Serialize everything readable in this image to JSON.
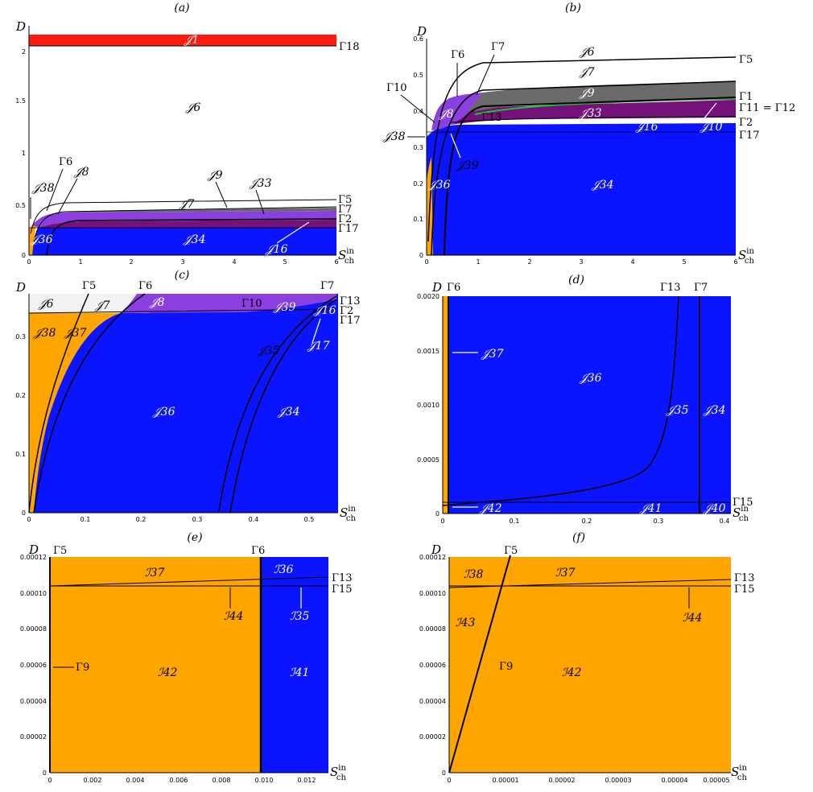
{
  "colors": {
    "blue": "#0a14ff",
    "orange": "#ffa500",
    "purple": "#8b3fe0",
    "darkpurple": "#74117a",
    "gray": "#6a6a6a",
    "lightgray": "#f2f2f2",
    "red": "#ff1a0f",
    "green": "#18c72b",
    "white": "#ffffff"
  },
  "chart_data": [
    {
      "panel": "(a)",
      "type": "area",
      "ylabel": "D",
      "xlabel": "S_ch^in",
      "xlim": [
        0,
        6
      ],
      "ylim": [
        0,
        2.2
      ],
      "xticks": [
        "0",
        "1",
        "2",
        "3",
        "4",
        "5",
        "6"
      ],
      "yticks": [
        "0",
        "0.5",
        "1",
        "1.5",
        "2"
      ],
      "region_labels": [
        "𝒥1",
        "𝒥6",
        "𝒥7",
        "𝒥9",
        "𝒥33",
        "𝒥38",
        "𝒥8",
        "𝒥36",
        "𝒥34",
        "𝒥16"
      ],
      "curve_labels": [
        "Γ18",
        "Γ6",
        "Γ5",
        "Γ7",
        "Γ2",
        "Γ17"
      ]
    },
    {
      "panel": "(b)",
      "type": "area",
      "ylabel": "D",
      "xlabel": "S_ch^in",
      "xlim": [
        0,
        6
      ],
      "ylim": [
        0,
        0.6
      ],
      "xticks": [
        "0",
        "1",
        "2",
        "3",
        "4",
        "5",
        "6"
      ],
      "yticks": [
        "0",
        "0.1",
        "0.2",
        "0.3",
        "0.4",
        "0.5",
        "0.6"
      ],
      "region_labels": [
        "𝒥6",
        "𝒥7",
        "𝒥9",
        "𝒥8",
        "𝒥33",
        "𝒥16",
        "𝒥10",
        "𝒥38",
        "𝒥39",
        "𝒥36",
        "𝒥34"
      ],
      "curve_labels": [
        "Γ6",
        "Γ7",
        "Γ5",
        "Γ10",
        "Γ1",
        "Γ11 = Γ12",
        "Γ13",
        "Γ2",
        "Γ17"
      ]
    },
    {
      "panel": "(c)",
      "type": "area",
      "ylabel": "D",
      "xlabel": "S_ch^in",
      "xlim": [
        0,
        0.55
      ],
      "ylim": [
        0,
        0.37
      ],
      "xticks": [
        "0",
        "0.1",
        "0.2",
        "0.3",
        "0.4",
        "0.5"
      ],
      "yticks": [
        "0",
        "0.1",
        "0.2",
        "0.3"
      ],
      "region_labels": [
        "𝒥6",
        "𝒥7",
        "𝒥8",
        "𝒥39",
        "𝒥16",
        "𝒥38",
        "𝒥37",
        "𝒥35",
        "𝒥17",
        "𝒥36",
        "𝒥34"
      ],
      "curve_labels": [
        "Γ5",
        "Γ6",
        "Γ7",
        "Γ10",
        "Γ13",
        "Γ2",
        "Γ17"
      ]
    },
    {
      "panel": "(d)",
      "type": "area",
      "ylabel": "D",
      "xlabel": "S_ch^in",
      "xlim": [
        0,
        0.4
      ],
      "ylim": [
        0,
        0.002
      ],
      "xticks": [
        "0",
        "0.1",
        "0.2",
        "0.3",
        "0.4"
      ],
      "yticks": [
        "0",
        "0.0005",
        "0.0010",
        "0.0015",
        "0.0020"
      ],
      "region_labels": [
        "𝒥37",
        "𝒥36",
        "𝒥35",
        "𝒥34",
        "𝒥42",
        "𝒥41",
        "𝒥40"
      ],
      "curve_labels": [
        "Γ6",
        "Γ13",
        "Γ7",
        "Γ15"
      ]
    },
    {
      "panel": "(e)",
      "type": "area",
      "ylabel": "D",
      "xlabel": "S_ch^in",
      "xlim": [
        0,
        0.013
      ],
      "ylim": [
        0,
        0.00012
      ],
      "xticks": [
        "0",
        "0.002",
        "0.004",
        "0.006",
        "0.008",
        "0.010",
        "0.012"
      ],
      "yticks": [
        "0",
        "0.00002",
        "0.00004",
        "0.00006",
        "0.00008",
        "0.00010",
        "0.00012"
      ],
      "region_labels": [
        "ℐ37",
        "ℐ36",
        "ℐ44",
        "ℐ35",
        "ℐ42",
        "ℐ41"
      ],
      "curve_labels": [
        "Γ5",
        "Γ6",
        "Γ13",
        "Γ15",
        "Γ9"
      ]
    },
    {
      "panel": "(f)",
      "type": "area",
      "ylabel": "D",
      "xlabel": "S_ch^in",
      "xlim": [
        0,
        5e-05
      ],
      "ylim": [
        0,
        0.00012
      ],
      "xticks": [
        "0",
        "0.00001",
        "0.00002",
        "0.00003",
        "0.00004",
        "0.00005"
      ],
      "yticks": [
        "0",
        "0.00002",
        "0.00004",
        "0.00006",
        "0.00008",
        "0.00010",
        "0.00012"
      ],
      "region_labels": [
        "ℐ38",
        "ℐ37",
        "ℐ43",
        "ℐ44",
        "ℐ42"
      ],
      "curve_labels": [
        "Γ5",
        "Γ13",
        "Γ15",
        "Γ9"
      ]
    }
  ]
}
